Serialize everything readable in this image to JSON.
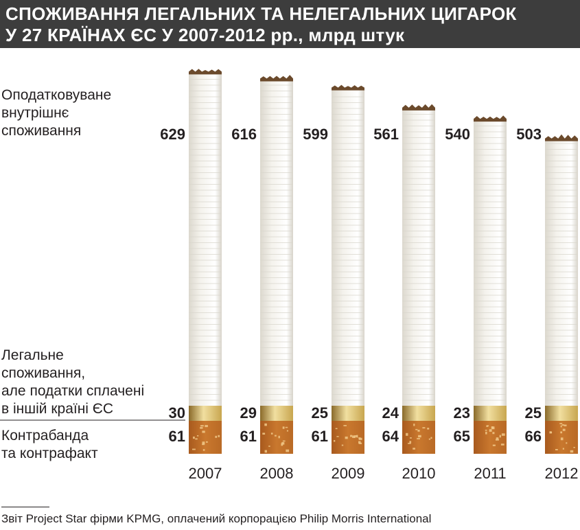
{
  "title": {
    "line1": "СПОЖИВАННЯ ЛЕГАЛЬНИХ ТА НЕЛЕГАЛЬНИХ ЦИГАРОК",
    "line2": "У 27 КРАЇНАХ ЄС У 2007-2012 рр., млрд штук"
  },
  "labels": {
    "taxed": "Оподатковуване\nвнутрішнє\nспоживання",
    "legal_other": "Легальне\nспоживання,\nале податки сплачені\nв іншій країні ЄС",
    "contraband": "Контрабанда\nта контрафакт"
  },
  "source": "Звіт Project Star фірми KPMG, оплачений корпорацією Philip Morris International",
  "colors": {
    "title_bg": "#3d3d3d",
    "paper": "#f4f2ec",
    "paper_line": "#d9d6cd",
    "band_gold": "#c8a64f",
    "filter_orange": "#c9782e",
    "filter_speck": "#f1c98a",
    "ash": "#6b4a2c",
    "text": "#231f20"
  },
  "chart_data": {
    "type": "bar",
    "stacked": true,
    "categories": [
      "2007",
      "2008",
      "2009",
      "2010",
      "2011",
      "2012"
    ],
    "series": [
      {
        "name": "Контрабанда та контрафакт",
        "values": [
          61,
          61,
          61,
          64,
          65,
          66
        ]
      },
      {
        "name": "Легальне споживання, але податки сплачені в іншій країні ЄС",
        "values": [
          30,
          29,
          25,
          24,
          23,
          25
        ]
      },
      {
        "name": "Оподатковуване внутрішнє споживання",
        "values": [
          629,
          616,
          599,
          561,
          540,
          503
        ]
      }
    ]
  }
}
